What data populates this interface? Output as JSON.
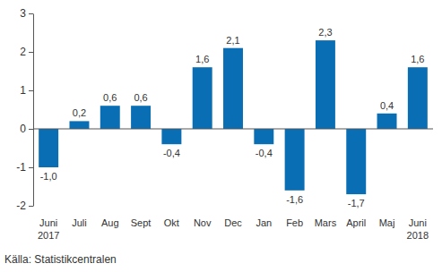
{
  "chart_data": {
    "type": "bar",
    "categories": [
      "Juni\n2017",
      "Juli",
      "Aug",
      "Sept",
      "Okt",
      "Nov",
      "Dec",
      "Jan",
      "Feb",
      "Mars",
      "April",
      "Maj",
      "Juni\n2018"
    ],
    "values": [
      -1.0,
      0.2,
      0.6,
      0.6,
      -0.4,
      1.6,
      2.1,
      -0.4,
      -1.6,
      2.3,
      -1.7,
      0.4,
      1.6
    ],
    "value_labels": [
      "-1,0",
      "0,2",
      "0,6",
      "0,6",
      "-0,4",
      "1,6",
      "2,1",
      "-0,4",
      "-1,6",
      "2,3",
      "-1,7",
      "0,4",
      "1,6"
    ],
    "color": "#0a6eb4",
    "ylim": [
      -2,
      3
    ],
    "yticks": [
      -2,
      -1,
      0,
      1,
      2,
      3
    ],
    "grid": false,
    "data_labels": true,
    "source": "Källa: Statistikcentralen"
  }
}
